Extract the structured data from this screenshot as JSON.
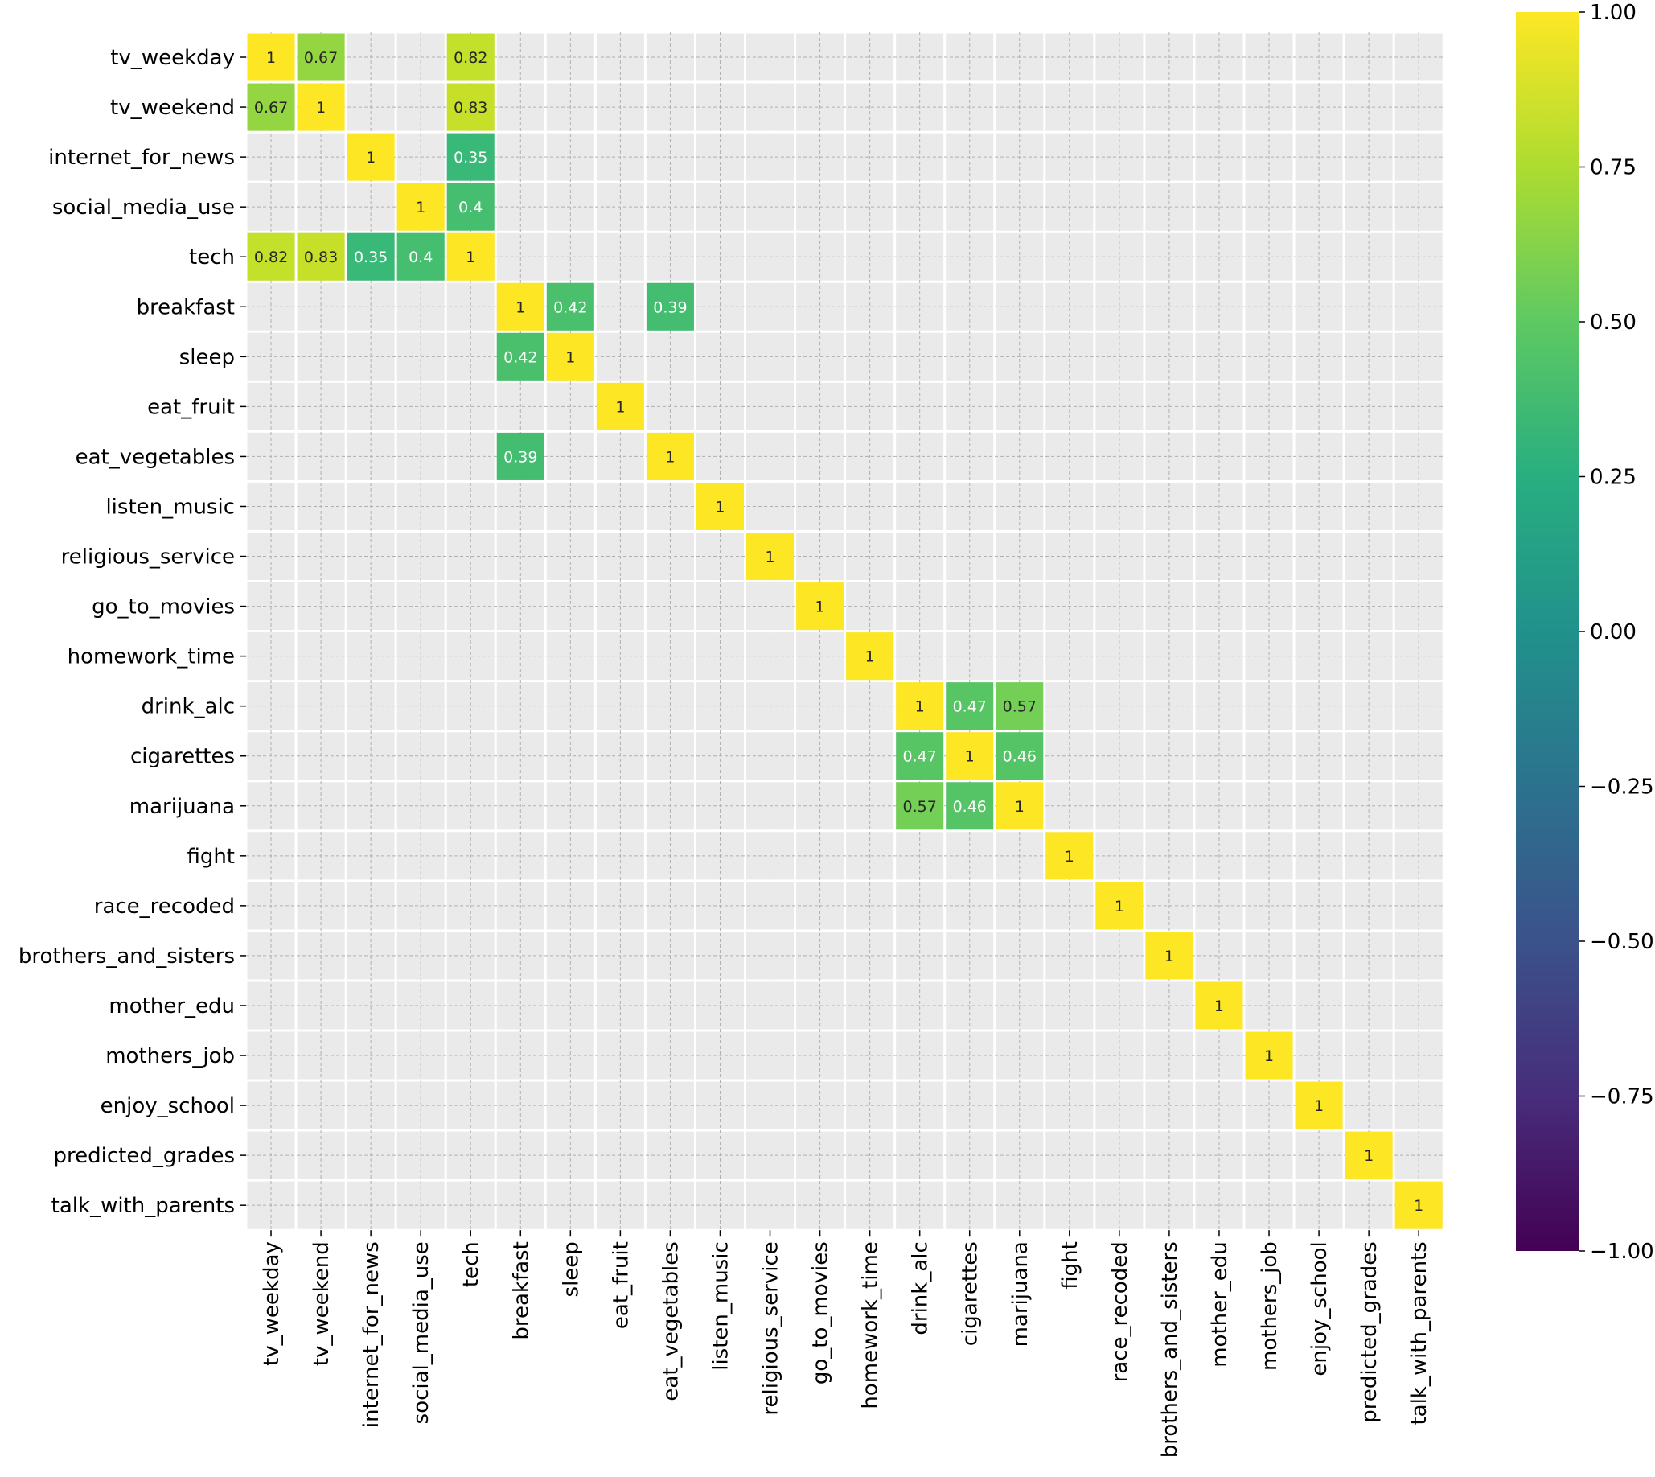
{
  "chart_data": {
    "type": "heatmap",
    "title": "",
    "xlabel": "",
    "ylabel": "",
    "colormap": "viridis",
    "vmin": -1.0,
    "vmax": 1.0,
    "mask_rule": "only |value| >= threshold shown",
    "categories": [
      "tv_weekday",
      "tv_weekend",
      "internet_for_news",
      "social_media_use",
      "tech",
      "breakfast",
      "sleep",
      "eat_fruit",
      "eat_vegetables",
      "listen_music",
      "religious_service",
      "go_to_movies",
      "homework_time",
      "drink_alc",
      "cigarettes",
      "marijuana",
      "fight",
      "race_recoded",
      "brothers_and_sisters",
      "mother_edu",
      "mothers_job",
      "enjoy_school",
      "predicted_grades",
      "talk_with_parents"
    ],
    "cells": [
      {
        "row": "tv_weekday",
        "col": "tv_weekday",
        "value": 1,
        "label": "1"
      },
      {
        "row": "tv_weekday",
        "col": "tv_weekend",
        "value": 0.67,
        "label": "0.67"
      },
      {
        "row": "tv_weekday",
        "col": "tech",
        "value": 0.82,
        "label": "0.82"
      },
      {
        "row": "tv_weekend",
        "col": "tv_weekday",
        "value": 0.67,
        "label": "0.67"
      },
      {
        "row": "tv_weekend",
        "col": "tv_weekend",
        "value": 1,
        "label": "1"
      },
      {
        "row": "tv_weekend",
        "col": "tech",
        "value": 0.83,
        "label": "0.83"
      },
      {
        "row": "internet_for_news",
        "col": "internet_for_news",
        "value": 1,
        "label": "1"
      },
      {
        "row": "internet_for_news",
        "col": "tech",
        "value": 0.35,
        "label": "0.35"
      },
      {
        "row": "social_media_use",
        "col": "social_media_use",
        "value": 1,
        "label": "1"
      },
      {
        "row": "social_media_use",
        "col": "tech",
        "value": 0.4,
        "label": "0.4"
      },
      {
        "row": "tech",
        "col": "tv_weekday",
        "value": 0.82,
        "label": "0.82"
      },
      {
        "row": "tech",
        "col": "tv_weekend",
        "value": 0.83,
        "label": "0.83"
      },
      {
        "row": "tech",
        "col": "internet_for_news",
        "value": 0.35,
        "label": "0.35"
      },
      {
        "row": "tech",
        "col": "social_media_use",
        "value": 0.4,
        "label": "0.4"
      },
      {
        "row": "tech",
        "col": "tech",
        "value": 1,
        "label": "1"
      },
      {
        "row": "breakfast",
        "col": "breakfast",
        "value": 1,
        "label": "1"
      },
      {
        "row": "breakfast",
        "col": "sleep",
        "value": 0.42,
        "label": "0.42"
      },
      {
        "row": "breakfast",
        "col": "eat_vegetables",
        "value": 0.39,
        "label": "0.39"
      },
      {
        "row": "sleep",
        "col": "breakfast",
        "value": 0.42,
        "label": "0.42"
      },
      {
        "row": "sleep",
        "col": "sleep",
        "value": 1,
        "label": "1"
      },
      {
        "row": "eat_fruit",
        "col": "eat_fruit",
        "value": 1,
        "label": "1"
      },
      {
        "row": "eat_vegetables",
        "col": "breakfast",
        "value": 0.39,
        "label": "0.39"
      },
      {
        "row": "eat_vegetables",
        "col": "eat_vegetables",
        "value": 1,
        "label": "1"
      },
      {
        "row": "listen_music",
        "col": "listen_music",
        "value": 1,
        "label": "1"
      },
      {
        "row": "religious_service",
        "col": "religious_service",
        "value": 1,
        "label": "1"
      },
      {
        "row": "go_to_movies",
        "col": "go_to_movies",
        "value": 1,
        "label": "1"
      },
      {
        "row": "homework_time",
        "col": "homework_time",
        "value": 1,
        "label": "1"
      },
      {
        "row": "drink_alc",
        "col": "drink_alc",
        "value": 1,
        "label": "1"
      },
      {
        "row": "drink_alc",
        "col": "cigarettes",
        "value": 0.47,
        "label": "0.47"
      },
      {
        "row": "drink_alc",
        "col": "marijuana",
        "value": 0.57,
        "label": "0.57"
      },
      {
        "row": "cigarettes",
        "col": "drink_alc",
        "value": 0.47,
        "label": "0.47"
      },
      {
        "row": "cigarettes",
        "col": "cigarettes",
        "value": 1,
        "label": "1"
      },
      {
        "row": "cigarettes",
        "col": "marijuana",
        "value": 0.46,
        "label": "0.46"
      },
      {
        "row": "marijuana",
        "col": "drink_alc",
        "value": 0.57,
        "label": "0.57"
      },
      {
        "row": "marijuana",
        "col": "cigarettes",
        "value": 0.46,
        "label": "0.46"
      },
      {
        "row": "marijuana",
        "col": "marijuana",
        "value": 1,
        "label": "1"
      },
      {
        "row": "fight",
        "col": "fight",
        "value": 1,
        "label": "1"
      },
      {
        "row": "race_recoded",
        "col": "race_recoded",
        "value": 1,
        "label": "1"
      },
      {
        "row": "brothers_and_sisters",
        "col": "brothers_and_sisters",
        "value": 1,
        "label": "1"
      },
      {
        "row": "mother_edu",
        "col": "mother_edu",
        "value": 1,
        "label": "1"
      },
      {
        "row": "mothers_job",
        "col": "mothers_job",
        "value": 1,
        "label": "1"
      },
      {
        "row": "enjoy_school",
        "col": "enjoy_school",
        "value": 1,
        "label": "1"
      },
      {
        "row": "predicted_grades",
        "col": "predicted_grades",
        "value": 1,
        "label": "1"
      },
      {
        "row": "talk_with_parents",
        "col": "talk_with_parents",
        "value": 1,
        "label": "1"
      }
    ],
    "colorbar": {
      "ticks": [
        1.0,
        0.75,
        0.5,
        0.25,
        0.0,
        -0.25,
        -0.5,
        -0.75,
        -1.0
      ],
      "tick_labels": [
        "1.00",
        "0.75",
        "0.50",
        "0.25",
        "0.00",
        "−0.25",
        "−0.50",
        "−0.75",
        "−1.00"
      ]
    },
    "grid": true,
    "colors": {
      "plot_background": "#eaeaea",
      "cell_border": "#ffffff",
      "grid_line": "#b0b0b0",
      "text_dark": "#262626",
      "text_light": "#ffffff"
    }
  }
}
